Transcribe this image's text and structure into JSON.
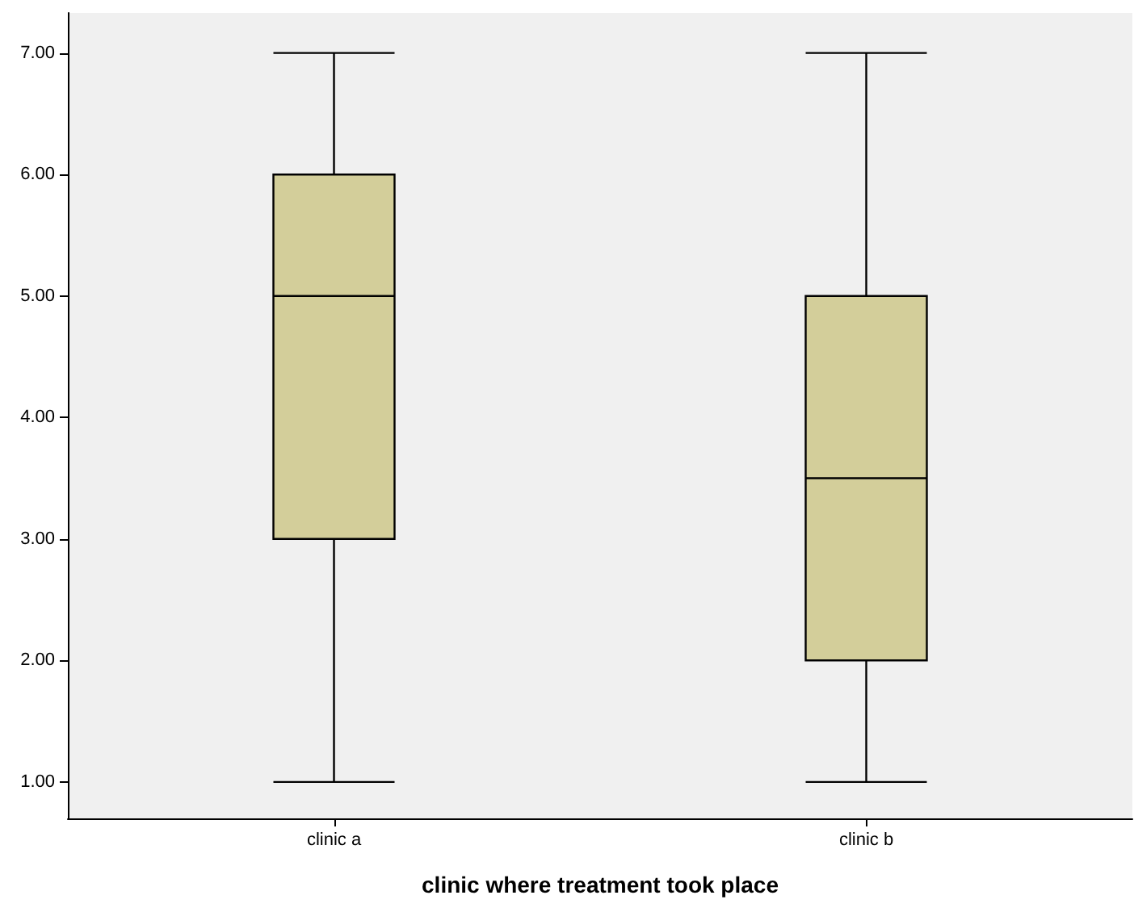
{
  "chart_data": {
    "type": "box",
    "xlabel": "clinic where treatment took place",
    "categories": [
      "clinic a",
      "clinic b"
    ],
    "series": [
      {
        "color": "#d3ce9a",
        "boxes": [
          {
            "low": 1,
            "q1": 3,
            "median": 5,
            "q3": 6,
            "high": 7
          },
          {
            "low": 1,
            "q1": 2,
            "median": 3.5,
            "q3": 5,
            "high": 7
          }
        ]
      }
    ],
    "ylim": [
      0.7,
      7.33
    ],
    "yticks": [
      {
        "value": 1,
        "label": "1.00"
      },
      {
        "value": 2,
        "label": "2.00"
      },
      {
        "value": 3,
        "label": "3.00"
      },
      {
        "value": 4,
        "label": "4.00"
      },
      {
        "value": 5,
        "label": "5.00"
      },
      {
        "value": 6,
        "label": "6.00"
      },
      {
        "value": 7,
        "label": "7.00"
      }
    ]
  }
}
